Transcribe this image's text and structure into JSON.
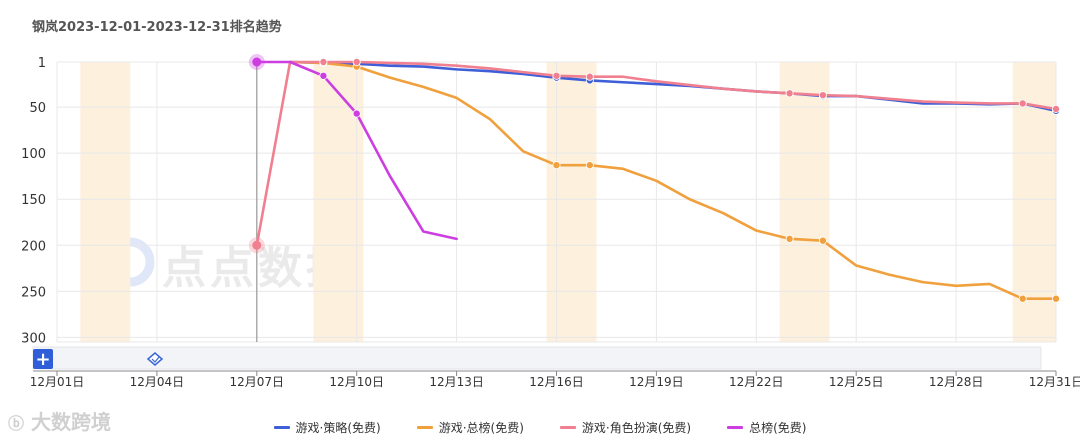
{
  "chart_data": {
    "type": "line",
    "title": "钢岚2023-12-01-2023-12-31排名趋势",
    "y_inverted": true,
    "ylim": [
      1,
      305
    ],
    "yticks": [
      "1",
      "50",
      "100",
      "150",
      "200",
      "250",
      "300"
    ],
    "ytick_values": [
      1,
      50,
      100,
      150,
      200,
      250,
      300
    ],
    "xlim": [
      1,
      31
    ],
    "xticks": [
      "12月01日",
      "12月04日",
      "12月07日",
      "12月10日",
      "12月13日",
      "12月16日",
      "12月19日",
      "12月22日",
      "12月25日",
      "12月28日",
      "12月31日"
    ],
    "xtick_values": [
      1,
      4,
      7,
      10,
      13,
      16,
      19,
      22,
      25,
      28,
      31
    ],
    "weekend_bands": [
      [
        1.7,
        3.2
      ],
      [
        8.7,
        10.2
      ],
      [
        15.7,
        17.2
      ],
      [
        22.7,
        24.2
      ],
      [
        29.7,
        31
      ]
    ],
    "cursor_day": 7,
    "grid": true,
    "legend_position": "bottom",
    "series": [
      {
        "name": "游戏·策略(免费)",
        "color": "#3e5fd8",
        "x": [
          8,
          9,
          10,
          11,
          12,
          13,
          14,
          15,
          16,
          17,
          18,
          19,
          20,
          21,
          22,
          23,
          24,
          25,
          26,
          27,
          28,
          29,
          30,
          31
        ],
        "y": [
          1,
          2,
          3,
          5,
          6,
          9,
          11,
          14,
          18,
          21,
          23,
          25,
          27,
          30,
          33,
          35,
          38,
          38,
          42,
          46,
          46,
          47,
          46,
          54
        ],
        "markers": [
          16,
          17,
          23,
          24,
          30,
          31
        ]
      },
      {
        "name": "游戏·总榜(免费)",
        "color": "#f0a03c",
        "x": [
          8,
          9,
          10,
          11,
          12,
          13,
          14,
          15,
          16,
          17,
          18,
          19,
          20,
          21,
          22,
          23,
          24,
          25,
          26,
          27,
          28,
          29,
          30,
          31
        ],
        "y": [
          1,
          2,
          6,
          18,
          28,
          40,
          63,
          98,
          113,
          113,
          117,
          130,
          150,
          165,
          184,
          193,
          195,
          222,
          232,
          240,
          244,
          242,
          258,
          258
        ],
        "markers": [
          9,
          10,
          16,
          17,
          23,
          24,
          30,
          31
        ]
      },
      {
        "name": "游戏·角色扮演(免费)",
        "color": "#f08090",
        "x": [
          7,
          8,
          9,
          10,
          11,
          12,
          13,
          14,
          15,
          16,
          17,
          18,
          19,
          20,
          21,
          22,
          23,
          24,
          25,
          26,
          27,
          28,
          29,
          30,
          31
        ],
        "y": [
          200,
          1,
          1,
          1,
          2,
          3,
          5,
          8,
          12,
          16,
          17,
          17,
          22,
          26,
          30,
          33,
          35,
          37,
          38,
          41,
          44,
          45,
          46,
          46,
          52
        ],
        "markers": [
          7,
          9,
          10,
          16,
          17,
          23,
          24,
          30,
          31
        ]
      },
      {
        "name": "总榜(免费)",
        "color": "#cc3ee0",
        "x": [
          7,
          8,
          9,
          10,
          11,
          12,
          13
        ],
        "y": [
          1,
          1,
          16,
          57,
          125,
          185,
          193
        ],
        "markers": [
          7,
          9,
          10
        ]
      }
    ]
  },
  "slider": {
    "add_label": "+"
  },
  "watermarks": {
    "main": "点点数据",
    "corner": "大数跨境"
  },
  "colors": {
    "weekend_band": "#fdf0dd",
    "grid": "#e8e8e8",
    "cursor": "#9a9a9a"
  }
}
